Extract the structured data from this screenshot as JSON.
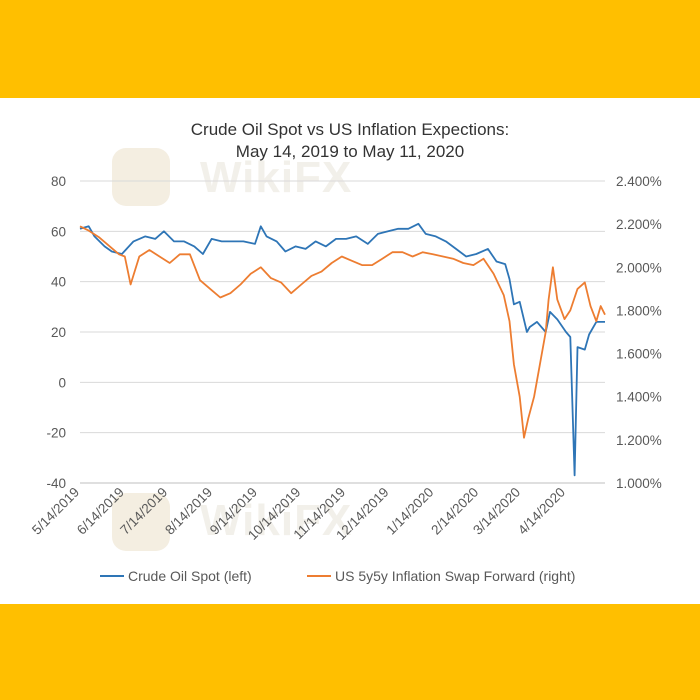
{
  "chart_data": {
    "type": "line",
    "title": "Crude Oil Spot vs US Inflation Expections:",
    "subtitle": "May 14, 2019 to May 11, 2020",
    "x_dates": [
      "5/14/2019",
      "6/14/2019",
      "7/14/2019",
      "8/14/2019",
      "9/14/2019",
      "10/14/2019",
      "11/14/2019",
      "12/14/2019",
      "1/14/2020",
      "2/14/2020",
      "3/14/2020",
      "4/14/2020"
    ],
    "x_range": [
      "2019-05-14",
      "2020-05-11"
    ],
    "y_left": {
      "min": -40,
      "max": 80,
      "ticks": [
        "80",
        "60",
        "40",
        "20",
        "0",
        "-20",
        "-40"
      ]
    },
    "y_right": {
      "min": 1.0,
      "max": 2.4,
      "ticks": [
        "2.400%",
        "2.200%",
        "2.000%",
        "1.800%",
        "1.600%",
        "1.400%",
        "1.200%",
        "1.000%"
      ]
    },
    "grid": true,
    "legend_position": "bottom",
    "series": [
      {
        "name": "Crude Oil Spot (left)",
        "axis": "left",
        "color": "#2E75B6",
        "points": [
          [
            "2019-05-14",
            61
          ],
          [
            "2019-05-20",
            62
          ],
          [
            "2019-05-24",
            58
          ],
          [
            "2019-05-31",
            54
          ],
          [
            "2019-06-05",
            52
          ],
          [
            "2019-06-12",
            51
          ],
          [
            "2019-06-20",
            56
          ],
          [
            "2019-06-28",
            58
          ],
          [
            "2019-07-05",
            57
          ],
          [
            "2019-07-11",
            60
          ],
          [
            "2019-07-18",
            56
          ],
          [
            "2019-07-25",
            56
          ],
          [
            "2019-08-01",
            54
          ],
          [
            "2019-08-07",
            51
          ],
          [
            "2019-08-13",
            57
          ],
          [
            "2019-08-20",
            56
          ],
          [
            "2019-08-28",
            56
          ],
          [
            "2019-09-04",
            56
          ],
          [
            "2019-09-12",
            55
          ],
          [
            "2019-09-16",
            62
          ],
          [
            "2019-09-20",
            58
          ],
          [
            "2019-09-27",
            56
          ],
          [
            "2019-10-03",
            52
          ],
          [
            "2019-10-10",
            54
          ],
          [
            "2019-10-17",
            53
          ],
          [
            "2019-10-24",
            56
          ],
          [
            "2019-10-31",
            54
          ],
          [
            "2019-11-07",
            57
          ],
          [
            "2019-11-14",
            57
          ],
          [
            "2019-11-21",
            58
          ],
          [
            "2019-11-29",
            55
          ],
          [
            "2019-12-06",
            59
          ],
          [
            "2019-12-13",
            60
          ],
          [
            "2019-12-20",
            61
          ],
          [
            "2019-12-27",
            61
          ],
          [
            "2020-01-03",
            63
          ],
          [
            "2020-01-08",
            59
          ],
          [
            "2020-01-15",
            58
          ],
          [
            "2020-01-22",
            56
          ],
          [
            "2020-01-29",
            53
          ],
          [
            "2020-02-05",
            50
          ],
          [
            "2020-02-12",
            51
          ],
          [
            "2020-02-20",
            53
          ],
          [
            "2020-02-26",
            48
          ],
          [
            "2020-03-03",
            47
          ],
          [
            "2020-03-06",
            41
          ],
          [
            "2020-03-09",
            31
          ],
          [
            "2020-03-13",
            32
          ],
          [
            "2020-03-18",
            20
          ],
          [
            "2020-03-20",
            22
          ],
          [
            "2020-03-25",
            24
          ],
          [
            "2020-03-31",
            20
          ],
          [
            "2020-04-03",
            28
          ],
          [
            "2020-04-08",
            25
          ],
          [
            "2020-04-14",
            20
          ],
          [
            "2020-04-17",
            18
          ],
          [
            "2020-04-20",
            -37
          ],
          [
            "2020-04-22",
            14
          ],
          [
            "2020-04-27",
            13
          ],
          [
            "2020-04-30",
            19
          ],
          [
            "2020-05-05",
            24
          ],
          [
            "2020-05-11",
            24
          ]
        ]
      },
      {
        "name": "US 5y5y Inflation Swap Forward (right)",
        "axis": "right",
        "color": "#ED7D31",
        "points": [
          [
            "2019-05-14",
            2.19
          ],
          [
            "2019-05-20",
            2.17
          ],
          [
            "2019-05-27",
            2.14
          ],
          [
            "2019-06-03",
            2.1
          ],
          [
            "2019-06-10",
            2.06
          ],
          [
            "2019-06-14",
            2.05
          ],
          [
            "2019-06-18",
            1.92
          ],
          [
            "2019-06-24",
            2.05
          ],
          [
            "2019-07-01",
            2.08
          ],
          [
            "2019-07-08",
            2.05
          ],
          [
            "2019-07-15",
            2.02
          ],
          [
            "2019-07-22",
            2.06
          ],
          [
            "2019-07-29",
            2.06
          ],
          [
            "2019-08-05",
            1.94
          ],
          [
            "2019-08-12",
            1.9
          ],
          [
            "2019-08-19",
            1.86
          ],
          [
            "2019-08-26",
            1.88
          ],
          [
            "2019-09-02",
            1.92
          ],
          [
            "2019-09-09",
            1.97
          ],
          [
            "2019-09-16",
            2.0
          ],
          [
            "2019-09-23",
            1.95
          ],
          [
            "2019-09-30",
            1.93
          ],
          [
            "2019-10-07",
            1.88
          ],
          [
            "2019-10-14",
            1.92
          ],
          [
            "2019-10-21",
            1.96
          ],
          [
            "2019-10-28",
            1.98
          ],
          [
            "2019-11-04",
            2.02
          ],
          [
            "2019-11-11",
            2.05
          ],
          [
            "2019-11-18",
            2.03
          ],
          [
            "2019-11-25",
            2.01
          ],
          [
            "2019-12-02",
            2.01
          ],
          [
            "2019-12-09",
            2.04
          ],
          [
            "2019-12-16",
            2.07
          ],
          [
            "2019-12-23",
            2.07
          ],
          [
            "2019-12-30",
            2.05
          ],
          [
            "2020-01-06",
            2.07
          ],
          [
            "2020-01-13",
            2.06
          ],
          [
            "2020-01-20",
            2.05
          ],
          [
            "2020-01-27",
            2.04
          ],
          [
            "2020-02-03",
            2.02
          ],
          [
            "2020-02-10",
            2.01
          ],
          [
            "2020-02-17",
            2.04
          ],
          [
            "2020-02-24",
            1.97
          ],
          [
            "2020-03-02",
            1.87
          ],
          [
            "2020-03-06",
            1.75
          ],
          [
            "2020-03-09",
            1.55
          ],
          [
            "2020-03-13",
            1.4
          ],
          [
            "2020-03-16",
            1.21
          ],
          [
            "2020-03-19",
            1.3
          ],
          [
            "2020-03-23",
            1.4
          ],
          [
            "2020-03-27",
            1.55
          ],
          [
            "2020-03-31",
            1.7
          ],
          [
            "2020-04-02",
            1.85
          ],
          [
            "2020-04-05",
            2.0
          ],
          [
            "2020-04-08",
            1.85
          ],
          [
            "2020-04-13",
            1.76
          ],
          [
            "2020-04-17",
            1.8
          ],
          [
            "2020-04-22",
            1.9
          ],
          [
            "2020-04-27",
            1.93
          ],
          [
            "2020-05-01",
            1.82
          ],
          [
            "2020-05-05",
            1.75
          ],
          [
            "2020-05-08",
            1.82
          ],
          [
            "2020-05-11",
            1.78
          ]
        ]
      }
    ]
  }
}
